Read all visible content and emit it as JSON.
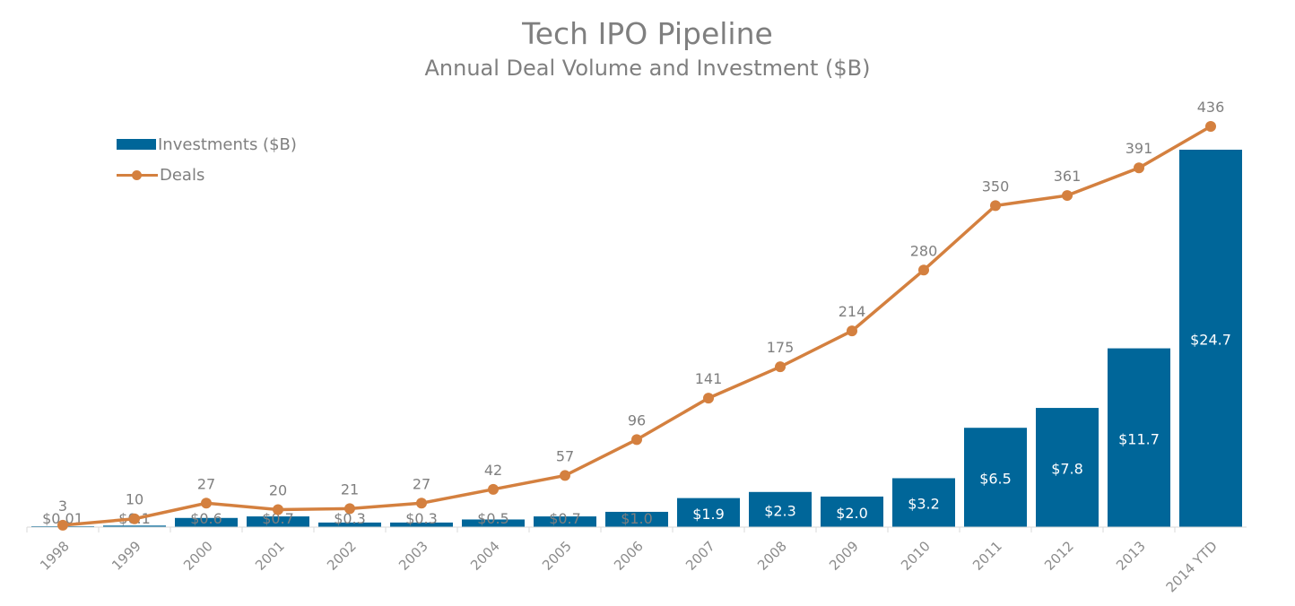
{
  "chart_data": {
    "type": "bar",
    "title": "Tech IPO Pipeline",
    "subtitle": "Annual Deal Volume and Investment ($B)",
    "categories": [
      "1998",
      "1999",
      "2000",
      "2001",
      "2002",
      "2003",
      "2004",
      "2005",
      "2006",
      "2007",
      "2008",
      "2009",
      "2010",
      "2011",
      "2012",
      "2013",
      "2014 YTD"
    ],
    "series": [
      {
        "name": "Investments ($B)",
        "type": "bar",
        "color": "#006699",
        "values": [
          0.01,
          0.1,
          0.6,
          0.7,
          0.3,
          0.3,
          0.5,
          0.7,
          1.0,
          1.9,
          2.3,
          2.0,
          3.2,
          6.5,
          7.8,
          11.7,
          24.7
        ],
        "labels": [
          "$0.01",
          "$0.1",
          "$0.6",
          "$0.7",
          "$0.3",
          "$0.3",
          "$0.5",
          "$0.7",
          "$1.0",
          "$1.9",
          "$2.3",
          "$2.0",
          "$3.2",
          "$6.5",
          "$7.8",
          "$11.7",
          "$24.7"
        ]
      },
      {
        "name": "Deals",
        "type": "line",
        "color": "#d4803f",
        "values": [
          3,
          10,
          27,
          20,
          21,
          27,
          42,
          57,
          96,
          141,
          175,
          214,
          280,
          350,
          361,
          391,
          436
        ],
        "labels": [
          "3",
          "10",
          "27",
          "20",
          "21",
          "27",
          "42",
          "57",
          "96",
          "141",
          "175",
          "214",
          "280",
          "350",
          "361",
          "391",
          "436"
        ]
      }
    ],
    "legend_position": "top-left",
    "grid": false
  }
}
